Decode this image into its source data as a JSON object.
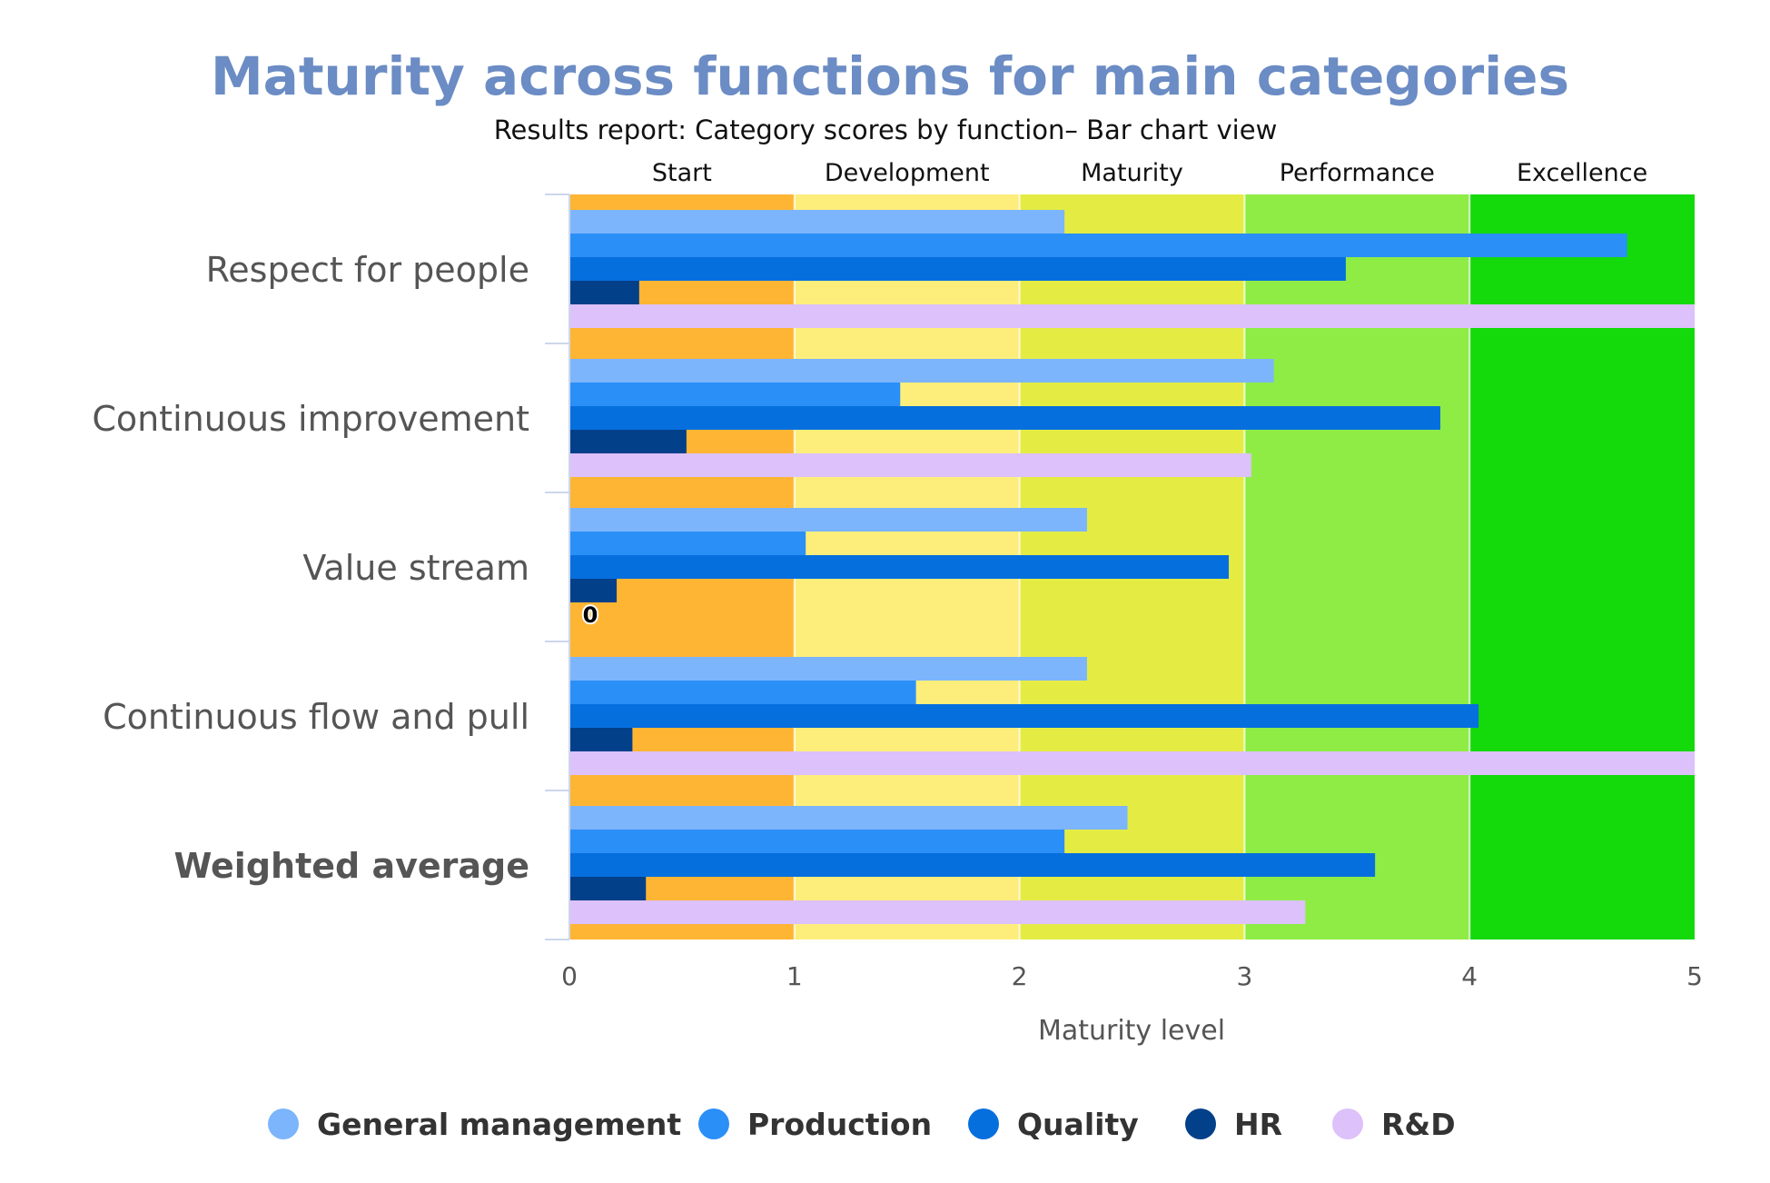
{
  "chart_data": {
    "type": "bar",
    "orientation": "horizontal",
    "title": "Maturity across functions for main categories",
    "subtitle": "Results report: Category scores by function– Bar chart view",
    "xlabel": "Maturity level",
    "ylabel": "",
    "xlim": [
      0,
      5
    ],
    "xticks": [
      "0",
      "1",
      "2",
      "3",
      "4",
      "5"
    ],
    "grid": false,
    "legend_position": "bottom",
    "colors": {
      "title": "#6b8cc4",
      "axis_line": "#ccd6eb"
    },
    "bands": [
      {
        "label": "Start",
        "from": 0,
        "to": 1,
        "color": "#ffb534"
      },
      {
        "label": "Development",
        "from": 1,
        "to": 2,
        "color": "#fdee7b"
      },
      {
        "label": "Maturity",
        "from": 2,
        "to": 3,
        "color": "#e4ec44"
      },
      {
        "label": "Performance",
        "from": 3,
        "to": 4,
        "color": "#8fec45"
      },
      {
        "label": "Excellence",
        "from": 4,
        "to": 5,
        "color": "#14d90b"
      }
    ],
    "categories": [
      "Respect for people",
      "Continuous improvement",
      "Value stream",
      "Continuous flow and pull",
      "Weighted average"
    ],
    "emphasized_category": "Weighted average",
    "series": [
      {
        "name": "General management",
        "color": "#7cb5fc",
        "values": [
          2.2,
          3.13,
          2.3,
          2.3,
          2.48
        ]
      },
      {
        "name": "Production",
        "color": "#2b8ff8",
        "values": [
          4.7,
          1.47,
          1.05,
          1.54,
          2.2
        ]
      },
      {
        "name": "Quality",
        "color": "#066fde",
        "values": [
          3.45,
          3.87,
          2.93,
          4.04,
          3.58
        ]
      },
      {
        "name": "HR",
        "color": "#02408a",
        "values": [
          0.31,
          0.52,
          0.21,
          0.28,
          0.34
        ]
      },
      {
        "name": "R&D",
        "color": "#dcc1fb",
        "values": [
          5.0,
          3.03,
          0,
          5.0,
          3.27
        ]
      }
    ],
    "data_labels": [
      {
        "category": "Value stream",
        "series": "R&D",
        "text": "0"
      }
    ]
  }
}
